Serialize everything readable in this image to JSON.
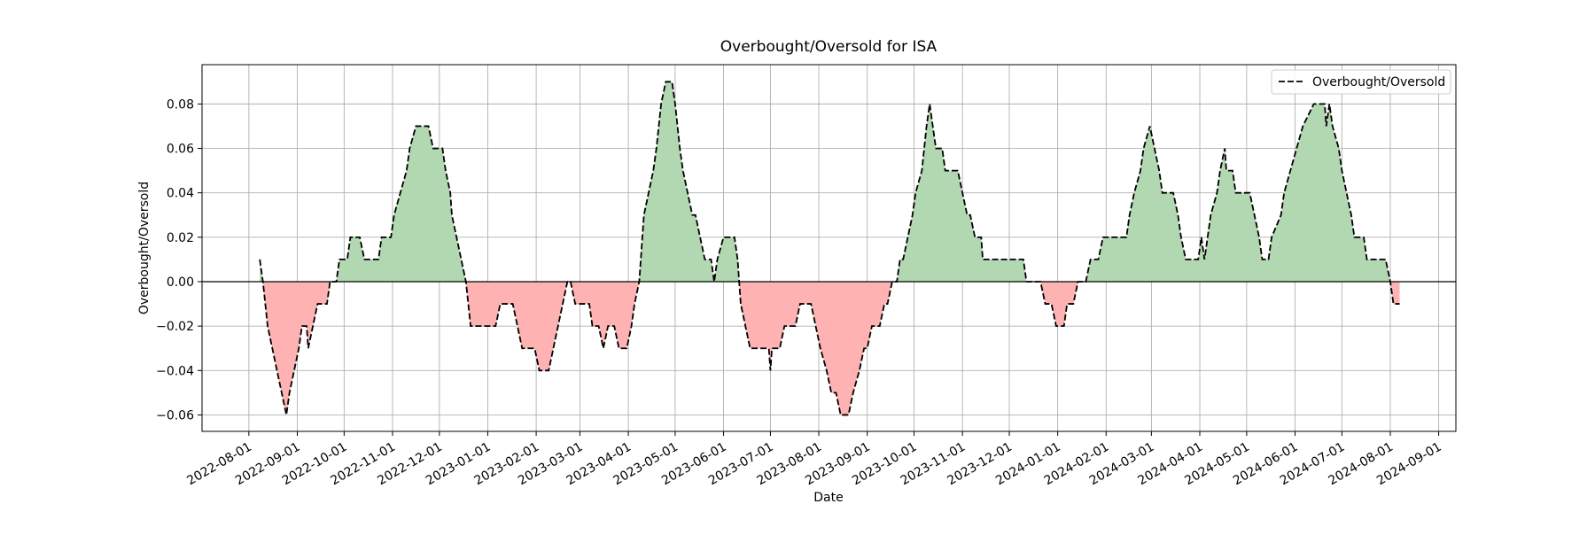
{
  "chart_data": {
    "type": "line",
    "title": "Overbought/Oversold for ISA",
    "x_label": "Date",
    "y_label": "Overbought/Oversold",
    "x": [
      "2022-08-08",
      "2022-08-10",
      "2022-08-13",
      "2022-08-16",
      "2022-08-19",
      "2022-08-22",
      "2022-08-25",
      "2022-08-27",
      "2022-08-30",
      "2022-09-02",
      "2022-09-04",
      "2022-09-07",
      "2022-09-08",
      "2022-09-11",
      "2022-09-14",
      "2022-09-20",
      "2022-09-22",
      "2022-09-26",
      "2022-09-28",
      "2022-10-03",
      "2022-10-05",
      "2022-10-11",
      "2022-10-14",
      "2022-10-23",
      "2022-10-25",
      "2022-10-31",
      "2022-11-02",
      "2022-11-06",
      "2022-11-10",
      "2022-11-12",
      "2022-11-16",
      "2022-11-24",
      "2022-11-27",
      "2022-12-03",
      "2022-12-05",
      "2022-12-08",
      "2022-12-09",
      "2022-12-12",
      "2022-12-15",
      "2022-12-18",
      "2022-12-21",
      "2023-01-06",
      "2023-01-09",
      "2023-01-17",
      "2023-01-20",
      "2023-01-23",
      "2023-01-31",
      "2023-02-03",
      "2023-02-09",
      "2023-02-12",
      "2023-02-15",
      "2023-02-18",
      "2023-02-21",
      "2023-02-23",
      "2023-02-26",
      "2023-03-07",
      "2023-03-09",
      "2023-03-13",
      "2023-03-16",
      "2023-03-19",
      "2023-03-23",
      "2023-03-26",
      "2023-03-31",
      "2023-04-03",
      "2023-04-05",
      "2023-04-08",
      "2023-04-11",
      "2023-04-14",
      "2023-04-17",
      "2023-04-19",
      "2023-04-22",
      "2023-04-25",
      "2023-04-29",
      "2023-05-01",
      "2023-05-04",
      "2023-05-06",
      "2023-05-09",
      "2023-05-12",
      "2023-05-14",
      "2023-05-17",
      "2023-05-20",
      "2023-05-24",
      "2023-05-26",
      "2023-05-28",
      "2023-06-01",
      "2023-06-08",
      "2023-06-10",
      "2023-06-12",
      "2023-06-15",
      "2023-06-18",
      "2023-06-20",
      "2023-06-30",
      "2023-07-01",
      "2023-07-02",
      "2023-07-07",
      "2023-07-10",
      "2023-07-17",
      "2023-07-20",
      "2023-07-27",
      "2023-07-30",
      "2023-08-02",
      "2023-08-06",
      "2023-08-09",
      "2023-08-12",
      "2023-08-15",
      "2023-08-20",
      "2023-08-23",
      "2023-08-27",
      "2023-08-30",
      "2023-09-01",
      "2023-09-04",
      "2023-09-09",
      "2023-09-12",
      "2023-09-14",
      "2023-09-17",
      "2023-09-20",
      "2023-09-22",
      "2023-09-24",
      "2023-09-27",
      "2023-09-30",
      "2023-10-02",
      "2023-10-06",
      "2023-10-09",
      "2023-10-11",
      "2023-10-13",
      "2023-10-15",
      "2023-10-19",
      "2023-10-21",
      "2023-10-29",
      "2023-11-01",
      "2023-11-04",
      "2023-11-06",
      "2023-11-09",
      "2023-11-13",
      "2023-11-14",
      "2023-12-10",
      "2023-12-12",
      "2023-12-21",
      "2023-12-24",
      "2023-12-28",
      "2023-12-31",
      "2024-01-05",
      "2024-01-07",
      "2024-01-11",
      "2024-01-14",
      "2024-01-19",
      "2024-01-22",
      "2024-01-27",
      "2024-01-30",
      "2024-02-14",
      "2024-02-16",
      "2024-02-19",
      "2024-02-23",
      "2024-02-25",
      "2024-02-29",
      "2024-03-03",
      "2024-03-06",
      "2024-03-08",
      "2024-03-15",
      "2024-03-18",
      "2024-03-20",
      "2024-03-23",
      "2024-03-31",
      "2024-04-02",
      "2024-04-04",
      "2024-04-06",
      "2024-04-08",
      "2024-04-12",
      "2024-04-14",
      "2024-04-17",
      "2024-04-18",
      "2024-04-22",
      "2024-04-24",
      "2024-05-03",
      "2024-05-06",
      "2024-05-09",
      "2024-05-11",
      "2024-05-15",
      "2024-05-17",
      "2024-05-23",
      "2024-05-25",
      "2024-05-29",
      "2024-06-02",
      "2024-06-06",
      "2024-06-13",
      "2024-06-20",
      "2024-06-21",
      "2024-06-23",
      "2024-06-25",
      "2024-06-29",
      "2024-07-01",
      "2024-07-04",
      "2024-07-07",
      "2024-07-09",
      "2024-07-15",
      "2024-07-17",
      "2024-07-29",
      "2024-08-01",
      "2024-08-03",
      "2024-08-07"
    ],
    "series": [
      {
        "name": "Overbought/Oversold",
        "color": "#000000",
        "line_style": "dashed",
        "values": [
          0.01,
          0,
          -0.02,
          -0.03,
          -0.04,
          -0.05,
          -0.06,
          -0.05,
          -0.04,
          -0.03,
          -0.02,
          -0.02,
          -0.03,
          -0.02,
          -0.01,
          -0.01,
          0,
          0,
          0.01,
          0.01,
          0.02,
          0.02,
          0.01,
          0.01,
          0.02,
          0.02,
          0.03,
          0.04,
          0.05,
          0.06,
          0.07,
          0.07,
          0.06,
          0.06,
          0.05,
          0.04,
          0.03,
          0.02,
          0.01,
          0,
          -0.02,
          -0.02,
          -0.01,
          -0.01,
          -0.02,
          -0.03,
          -0.03,
          -0.04,
          -0.04,
          -0.03,
          -0.02,
          -0.01,
          0,
          0,
          -0.01,
          -0.01,
          -0.02,
          -0.02,
          -0.03,
          -0.02,
          -0.02,
          -0.03,
          -0.03,
          -0.02,
          -0.01,
          0,
          0.03,
          0.04,
          0.05,
          0.06,
          0.08,
          0.09,
          0.09,
          0.08,
          0.06,
          0.05,
          0.04,
          0.03,
          0.03,
          0.02,
          0.01,
          0.01,
          0,
          0.01,
          0.02,
          0.02,
          0.01,
          -0.01,
          -0.02,
          -0.03,
          -0.03,
          -0.03,
          -0.04,
          -0.03,
          -0.03,
          -0.02,
          -0.02,
          -0.01,
          -0.01,
          -0.02,
          -0.03,
          -0.04,
          -0.05,
          -0.05,
          -0.06,
          -0.06,
          -0.05,
          -0.04,
          -0.03,
          -0.03,
          -0.02,
          -0.02,
          -0.01,
          -0.01,
          0,
          0,
          0.01,
          0.01,
          0.02,
          0.03,
          0.04,
          0.05,
          0.07,
          0.08,
          0.07,
          0.06,
          0.06,
          0.05,
          0.05,
          0.04,
          0.03,
          0.03,
          0.02,
          0.02,
          0.01,
          0.01,
          0,
          0,
          -0.01,
          -0.01,
          -0.02,
          -0.02,
          -0.01,
          -0.01,
          0,
          0,
          0.01,
          0.01,
          0.02,
          0.02,
          0.03,
          0.04,
          0.05,
          0.06,
          0.07,
          0.06,
          0.05,
          0.04,
          0.04,
          0.03,
          0.02,
          0.01,
          0.01,
          0.02,
          0.01,
          0.02,
          0.03,
          0.04,
          0.05,
          0.06,
          0.05,
          0.05,
          0.04,
          0.04,
          0.03,
          0.02,
          0.01,
          0.01,
          0.02,
          0.03,
          0.04,
          0.05,
          0.06,
          0.07,
          0.08,
          0.08,
          0.07,
          0.08,
          0.07,
          0.06,
          0.05,
          0.04,
          0.03,
          0.02,
          0.02,
          0.01,
          0.01,
          0,
          -0.01,
          -0.01
        ]
      }
    ],
    "positive_fill": "#b2d8b2",
    "negative_fill": "#ffb2b2",
    "zero_line": true,
    "xlim": [
      "2022-07-02",
      "2024-09-12"
    ],
    "xticks": [
      "2022-08-01",
      "2022-09-01",
      "2022-10-01",
      "2022-11-01",
      "2022-12-01",
      "2023-01-01",
      "2023-02-01",
      "2023-03-01",
      "2023-04-01",
      "2023-05-01",
      "2023-06-01",
      "2023-07-01",
      "2023-08-01",
      "2023-09-01",
      "2023-10-01",
      "2023-11-01",
      "2023-12-01",
      "2024-01-01",
      "2024-02-01",
      "2024-03-01",
      "2024-04-01",
      "2024-05-01",
      "2024-06-01",
      "2024-07-01",
      "2024-08-01",
      "2024-09-01"
    ],
    "ylim": [
      -0.0674,
      0.0977
    ],
    "yticks": [
      {
        "value": -0.06,
        "label": "−0.06"
      },
      {
        "value": -0.04,
        "label": "−0.04"
      },
      {
        "value": -0.02,
        "label": "−0.02"
      },
      {
        "value": 0,
        "label": "0.00"
      },
      0.02,
      0.04,
      0.06,
      0.08
    ],
    "grid": true,
    "legend": "upper right"
  }
}
